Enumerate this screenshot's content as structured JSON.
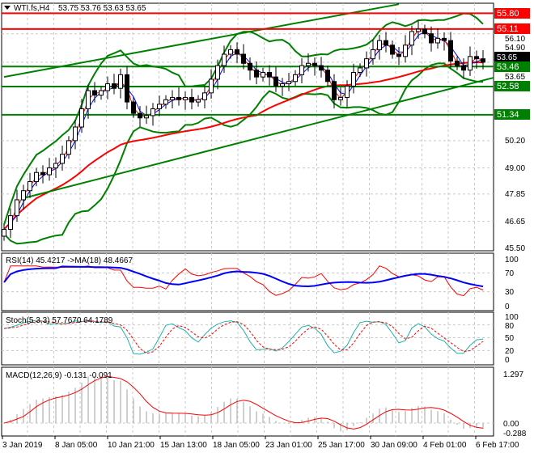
{
  "header": {
    "symbol": "WTI.fs,H4",
    "ohlc": "53.75 53.76 53.63 53.65",
    "menu_icon": "triangle-down-icon"
  },
  "chart_data": [
    {
      "type": "candlestick",
      "title": "WTI.fs,H4",
      "ylim": [
        45.5,
        56.1
      ],
      "y_ticks": [
        "56.10",
        "54.90",
        "53.65",
        "50.20",
        "49.00",
        "47.85",
        "46.65",
        "45.50"
      ],
      "x_ticks": [
        "3 Jan 2019",
        "8 Jan 05:00",
        "10 Jan 21:00",
        "15 Jan 13:00",
        "18 Jan 05:00",
        "23 Jan 01:00",
        "25 Jan 17:00",
        "30 Jan 09:00",
        "4 Feb 01:00",
        "6 Feb 17:00"
      ],
      "closes": [
        46.3,
        46.9,
        47.6,
        48.0,
        48.4,
        48.8,
        48.7,
        49.0,
        49.2,
        49.6,
        50.2,
        50.8,
        51.6,
        52.4,
        52.2,
        52.4,
        52.7,
        52.5,
        53.1,
        51.9,
        51.4,
        51.2,
        51.3,
        51.6,
        51.8,
        52.0,
        52.1,
        52.0,
        52.1,
        51.9,
        52.0,
        52.3,
        52.9,
        53.5,
        54.0,
        54.2,
        54.0,
        53.6,
        53.3,
        53.0,
        53.2,
        53.0,
        52.6,
        52.7,
        52.8,
        53.1,
        53.5,
        53.6,
        53.5,
        53.3,
        52.8,
        52.0,
        52.1,
        52.6,
        53.2,
        53.4,
        53.8,
        54.2,
        54.6,
        54.4,
        54.0,
        53.9,
        54.4,
        55.0,
        55.1,
        54.9,
        54.5,
        54.7,
        54.6,
        53.7,
        53.5,
        53.3,
        53.9,
        53.8,
        53.65
      ],
      "current_price": "53.65",
      "levels": [
        {
          "price": 55.8,
          "label": "55.80",
          "color": "#ff0000"
        },
        {
          "price": 55.11,
          "label": "55.11",
          "color": "#ff0000"
        },
        {
          "price": 53.46,
          "label": "53.46",
          "color": "#008000"
        },
        {
          "price": 52.58,
          "label": "52.58",
          "color": "#008000"
        },
        {
          "price": 51.34,
          "label": "51.34",
          "color": "#008000"
        }
      ],
      "trendlines": [
        {
          "from": [
            0,
            53.0
          ],
          "to": [
            61,
            56.2
          ],
          "color": "#008000"
        },
        {
          "from": [
            3,
            47.67
          ],
          "to": [
            81,
            53.36
          ],
          "color": "#008000"
        }
      ],
      "colors": {
        "up": "#000000",
        "down": "#000000",
        "bollinger": "#008000",
        "ma_fast": "#0000ff",
        "ma_slow": "#ff0000"
      }
    },
    {
      "type": "line",
      "label": "RSI(14) 45.4217  ->MA(18) 48.4667",
      "ylim": [
        0,
        100
      ],
      "y_ticks": [
        "100",
        "70",
        "30",
        "0"
      ],
      "colors": {
        "rsi": "#ff0000",
        "ma": "#0000ff"
      }
    },
    {
      "type": "line",
      "label": "Stoch(5,3,3) 57.7670 64.1789",
      "ylim": [
        0,
        100
      ],
      "y_ticks": [
        "100",
        "80",
        "50",
        "20",
        "0"
      ],
      "colors": {
        "main": "#20b2aa",
        "signal": "#ff0000"
      }
    },
    {
      "type": "bar",
      "label": "MACD(12,26,9) -0.131 -0.091",
      "ylim": [
        -0.288,
        1.297
      ],
      "y_ticks": [
        "1.297",
        "0.00",
        "-0.288"
      ],
      "colors": {
        "hist": "#c0c0c0",
        "signal": "#ff0000"
      }
    }
  ]
}
